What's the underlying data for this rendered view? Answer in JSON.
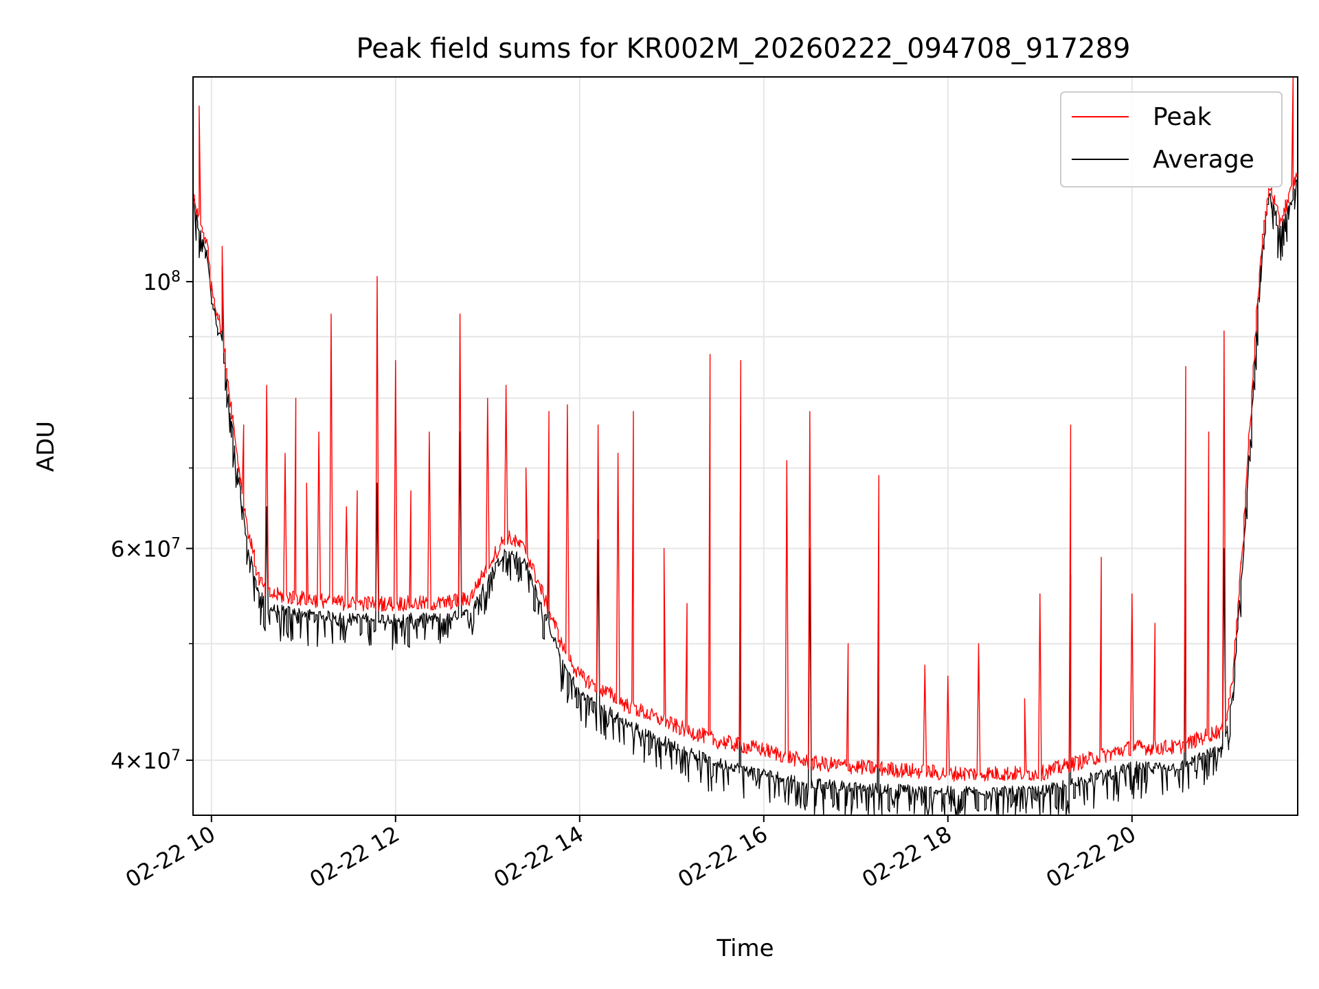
{
  "chart_data": {
    "type": "line",
    "title": "Peak field sums for KR002M_20260222_094708_917289",
    "xlabel": "Time",
    "ylabel": "ADU",
    "xaxis_type": "time",
    "yscale": "log",
    "xlim": [
      "2026-02-22 09:48",
      "2026-02-22 21:48"
    ],
    "ylim": [
      36000000,
      148000000
    ],
    "grid": true,
    "legend_position": "top-right",
    "x_ticks": [
      {
        "value": "2026-02-22 10:00",
        "label": "02-22 10"
      },
      {
        "value": "2026-02-22 12:00",
        "label": "02-22 12"
      },
      {
        "value": "2026-02-22 14:00",
        "label": "02-22 14"
      },
      {
        "value": "2026-02-22 16:00",
        "label": "02-22 16"
      },
      {
        "value": "2026-02-22 18:00",
        "label": "02-22 18"
      },
      {
        "value": "2026-02-22 20:00",
        "label": "02-22 20"
      }
    ],
    "y_ticks": [
      {
        "value": 100000000,
        "base": "10",
        "exp": "8",
        "mult": ""
      },
      {
        "value": 60000000,
        "base": "10",
        "exp": "7",
        "mult": "6"
      },
      {
        "value": 40000000,
        "base": "10",
        "exp": "7",
        "mult": "4"
      }
    ],
    "y_minor_ticks": [
      50000000,
      70000000,
      80000000,
      90000000
    ],
    "series": [
      {
        "name": "Peak",
        "color": "#ff0000",
        "baseline": [
          [
            "2026-02-22 09:48",
            118000000
          ],
          [
            "2026-02-22 09:52",
            112000000
          ],
          [
            "2026-02-22 09:57",
            108000000
          ],
          [
            "2026-02-22 10:00",
            99000000
          ],
          [
            "2026-02-22 10:06",
            92000000
          ],
          [
            "2026-02-22 10:12",
            80000000
          ],
          [
            "2026-02-22 10:18",
            70000000
          ],
          [
            "2026-02-22 10:24",
            62000000
          ],
          [
            "2026-02-22 10:30",
            57000000
          ],
          [
            "2026-02-22 10:36",
            55000000
          ],
          [
            "2026-02-22 11:00",
            54500000
          ],
          [
            "2026-02-22 11:30",
            54000000
          ],
          [
            "2026-02-22 12:00",
            54000000
          ],
          [
            "2026-02-22 12:30",
            54000000
          ],
          [
            "2026-02-22 12:48",
            54500000
          ],
          [
            "2026-02-22 13:00",
            58000000
          ],
          [
            "2026-02-22 13:12",
            61500000
          ],
          [
            "2026-02-22 13:24",
            60000000
          ],
          [
            "2026-02-22 13:36",
            55000000
          ],
          [
            "2026-02-22 13:48",
            50000000
          ],
          [
            "2026-02-22 14:00",
            47000000
          ],
          [
            "2026-02-22 14:30",
            44500000
          ],
          [
            "2026-02-22 15:00",
            42800000
          ],
          [
            "2026-02-22 15:30",
            41500000
          ],
          [
            "2026-02-22 16:00",
            40800000
          ],
          [
            "2026-02-22 16:30",
            39800000
          ],
          [
            "2026-02-22 17:00",
            39500000
          ],
          [
            "2026-02-22 18:00",
            39000000
          ],
          [
            "2026-02-22 19:00",
            39000000
          ],
          [
            "2026-02-22 19:30",
            40000000
          ],
          [
            "2026-02-22 20:00",
            41000000
          ],
          [
            "2026-02-22 20:30",
            41000000
          ],
          [
            "2026-02-22 21:00",
            42500000
          ],
          [
            "2026-02-22 21:06",
            47000000
          ],
          [
            "2026-02-22 21:12",
            60000000
          ],
          [
            "2026-02-22 21:18",
            80000000
          ],
          [
            "2026-02-22 21:24",
            105000000
          ],
          [
            "2026-02-22 21:30",
            120000000
          ],
          [
            "2026-02-22 21:36",
            112000000
          ],
          [
            "2026-02-22 21:42",
            117000000
          ],
          [
            "2026-02-22 21:48",
            123000000
          ]
        ],
        "spikes": [
          [
            "2026-02-22 09:52",
            140000000
          ],
          [
            "2026-02-22 10:07",
            107000000
          ],
          [
            "2026-02-22 10:21",
            76000000
          ],
          [
            "2026-02-22 10:36",
            82000000
          ],
          [
            "2026-02-22 10:48",
            72000000
          ],
          [
            "2026-02-22 10:55",
            80000000
          ],
          [
            "2026-02-22 11:02",
            68000000
          ],
          [
            "2026-02-22 11:10",
            75000000
          ],
          [
            "2026-02-22 11:18",
            94000000
          ],
          [
            "2026-02-22 11:28",
            65000000
          ],
          [
            "2026-02-22 11:35",
            67000000
          ],
          [
            "2026-02-22 11:48",
            101000000
          ],
          [
            "2026-02-22 12:00",
            86000000
          ],
          [
            "2026-02-22 12:10",
            67000000
          ],
          [
            "2026-02-22 12:22",
            75000000
          ],
          [
            "2026-02-22 12:42",
            94000000
          ],
          [
            "2026-02-22 13:00",
            80000000
          ],
          [
            "2026-02-22 13:12",
            82000000
          ],
          [
            "2026-02-22 13:25",
            70000000
          ],
          [
            "2026-02-22 13:40",
            78000000
          ],
          [
            "2026-02-22 13:52",
            79000000
          ],
          [
            "2026-02-22 14:12",
            76000000
          ],
          [
            "2026-02-22 14:25",
            72000000
          ],
          [
            "2026-02-22 14:35",
            78000000
          ],
          [
            "2026-02-22 14:55",
            60000000
          ],
          [
            "2026-02-22 15:10",
            54000000
          ],
          [
            "2026-02-22 15:25",
            87000000
          ],
          [
            "2026-02-22 15:45",
            86000000
          ],
          [
            "2026-02-22 16:15",
            71000000
          ],
          [
            "2026-02-22 16:30",
            78000000
          ],
          [
            "2026-02-22 16:55",
            50000000
          ],
          [
            "2026-02-22 17:15",
            69000000
          ],
          [
            "2026-02-22 17:45",
            48000000
          ],
          [
            "2026-02-22 18:00",
            47000000
          ],
          [
            "2026-02-22 18:20",
            50000000
          ],
          [
            "2026-02-22 18:50",
            45000000
          ],
          [
            "2026-02-22 19:00",
            55000000
          ],
          [
            "2026-02-22 19:20",
            76000000
          ],
          [
            "2026-02-22 19:40",
            59000000
          ],
          [
            "2026-02-22 20:00",
            55000000
          ],
          [
            "2026-02-22 20:15",
            52000000
          ],
          [
            "2026-02-22 20:35",
            85000000
          ],
          [
            "2026-02-22 20:50",
            75000000
          ],
          [
            "2026-02-22 21:00",
            91000000
          ],
          [
            "2026-02-22 21:45",
            148000000
          ]
        ]
      },
      {
        "name": "Average",
        "color": "#000000",
        "baseline": [
          [
            "2026-02-22 09:48",
            117000000
          ],
          [
            "2026-02-22 09:52",
            110000000
          ],
          [
            "2026-02-22 09:57",
            106000000
          ],
          [
            "2026-02-22 10:00",
            97000000
          ],
          [
            "2026-02-22 10:06",
            90000000
          ],
          [
            "2026-02-22 10:12",
            78000000
          ],
          [
            "2026-02-22 10:18",
            68000000
          ],
          [
            "2026-02-22 10:24",
            60000000
          ],
          [
            "2026-02-22 10:30",
            55500000
          ],
          [
            "2026-02-22 10:36",
            53500000
          ],
          [
            "2026-02-22 11:00",
            53000000
          ],
          [
            "2026-02-22 11:30",
            52500000
          ],
          [
            "2026-02-22 12:00",
            52500000
          ],
          [
            "2026-02-22 12:30",
            52500000
          ],
          [
            "2026-02-22 12:48",
            53000000
          ],
          [
            "2026-02-22 13:00",
            56500000
          ],
          [
            "2026-02-22 13:12",
            60000000
          ],
          [
            "2026-02-22 13:24",
            58500000
          ],
          [
            "2026-02-22 13:36",
            53500000
          ],
          [
            "2026-02-22 13:48",
            48500000
          ],
          [
            "2026-02-22 14:00",
            45500000
          ],
          [
            "2026-02-22 14:30",
            43000000
          ],
          [
            "2026-02-22 15:00",
            41200000
          ],
          [
            "2026-02-22 15:30",
            39800000
          ],
          [
            "2026-02-22 16:00",
            39000000
          ],
          [
            "2026-02-22 16:30",
            38300000
          ],
          [
            "2026-02-22 17:00",
            38000000
          ],
          [
            "2026-02-22 18:00",
            37700000
          ],
          [
            "2026-02-22 19:00",
            37700000
          ],
          [
            "2026-02-22 19:30",
            38600000
          ],
          [
            "2026-02-22 20:00",
            39500000
          ],
          [
            "2026-02-22 20:30",
            39500000
          ],
          [
            "2026-02-22 21:00",
            41000000
          ],
          [
            "2026-02-22 21:06",
            45500000
          ],
          [
            "2026-02-22 21:12",
            58000000
          ],
          [
            "2026-02-22 21:18",
            78000000
          ],
          [
            "2026-02-22 21:24",
            103000000
          ],
          [
            "2026-02-22 21:30",
            119000000
          ],
          [
            "2026-02-22 21:36",
            110000000
          ],
          [
            "2026-02-22 21:42",
            115000000
          ],
          [
            "2026-02-22 21:48",
            121000000
          ]
        ],
        "spikes": [
          [
            "2026-02-22 10:07",
            103000000
          ],
          [
            "2026-02-22 10:36",
            65000000
          ],
          [
            "2026-02-22 11:48",
            68000000
          ],
          [
            "2026-02-22 12:42",
            75000000
          ],
          [
            "2026-02-22 13:40",
            62000000
          ],
          [
            "2026-02-22 14:12",
            61000000
          ],
          [
            "2026-02-22 15:45",
            59000000
          ],
          [
            "2026-02-22 16:30",
            60000000
          ],
          [
            "2026-02-22 17:15",
            56000000
          ],
          [
            "2026-02-22 19:20",
            57000000
          ],
          [
            "2026-02-22 20:35",
            56000000
          ],
          [
            "2026-02-22 21:00",
            60000000
          ]
        ]
      }
    ]
  }
}
